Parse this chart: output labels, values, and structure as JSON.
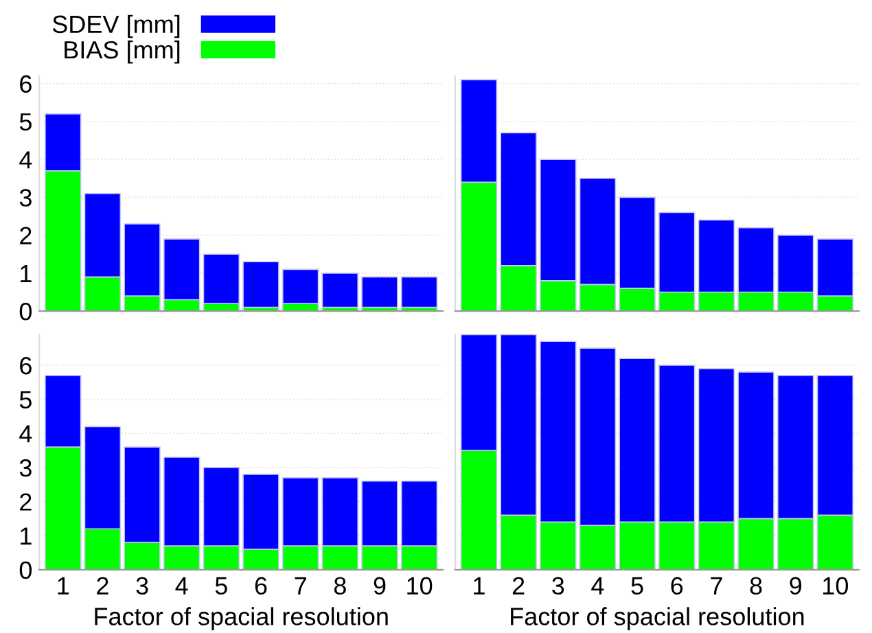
{
  "chart_data": [
    {
      "type": "bar",
      "stacked": true,
      "categories": [
        "1",
        "2",
        "3",
        "4",
        "5",
        "6",
        "7",
        "8",
        "9",
        "10"
      ],
      "ylim": [
        0,
        6.2
      ],
      "yticks": [
        0,
        1,
        2,
        3,
        4,
        5,
        6
      ],
      "grid": "y",
      "legend": "top left",
      "tick_labels": "y",
      "series": [
        {
          "name": "BIAS [mm]",
          "color": "#00ff00",
          "values": [
            3.7,
            0.9,
            0.4,
            0.3,
            0.2,
            0.1,
            0.2,
            0.1,
            0.1,
            0.1
          ]
        },
        {
          "name": "SDEV [mm]",
          "color": "#0000ff",
          "values": [
            1.5,
            2.2,
            1.9,
            1.6,
            1.3,
            1.2,
            0.9,
            0.9,
            0.8,
            0.8
          ]
        }
      ]
    },
    {
      "type": "bar",
      "stacked": true,
      "categories": [
        "1",
        "2",
        "3",
        "4",
        "5",
        "6",
        "7",
        "8",
        "9",
        "10"
      ],
      "ylim": [
        0,
        6.2
      ],
      "yticks": [
        0,
        1,
        2,
        3,
        4,
        5,
        6
      ],
      "grid": "y",
      "tick_labels": false,
      "series": [
        {
          "color": "#00ff00",
          "values": [
            3.4,
            1.2,
            0.8,
            0.7,
            0.6,
            0.5,
            0.5,
            0.5,
            0.5,
            0.4
          ]
        },
        {
          "color": "#0000ff",
          "values": [
            2.7,
            3.5,
            3.2,
            2.8,
            2.4,
            2.1,
            1.9,
            1.7,
            1.5,
            1.5
          ]
        }
      ]
    },
    {
      "type": "bar",
      "stacked": true,
      "categories": [
        "1",
        "2",
        "3",
        "4",
        "5",
        "6",
        "7",
        "8",
        "9",
        "10"
      ],
      "ylim": [
        0,
        6.9
      ],
      "yticks": [
        0,
        1,
        2,
        3,
        4,
        5,
        6
      ],
      "grid": "y",
      "xlabel": "Factor of spacial resolution",
      "series": [
        {
          "color": "#00ff00",
          "values": [
            3.6,
            1.2,
            0.8,
            0.7,
            0.7,
            0.6,
            0.7,
            0.7,
            0.7,
            0.7
          ]
        },
        {
          "color": "#0000ff",
          "values": [
            2.1,
            3.0,
            2.8,
            2.6,
            2.3,
            2.2,
            2.0,
            2.0,
            1.9,
            1.9
          ]
        }
      ]
    },
    {
      "type": "bar",
      "stacked": true,
      "categories": [
        "1",
        "2",
        "3",
        "4",
        "5",
        "6",
        "7",
        "8",
        "9",
        "10"
      ],
      "ylim": [
        0,
        6.9
      ],
      "yticks": [
        0,
        1,
        2,
        3,
        4,
        5,
        6
      ],
      "grid": "y",
      "tick_labels": "x",
      "xlabel": "Factor of spacial resolution",
      "series": [
        {
          "color": "#00ff00",
          "values": [
            3.5,
            1.6,
            1.4,
            1.3,
            1.4,
            1.4,
            1.4,
            1.5,
            1.5,
            1.6
          ]
        },
        {
          "color": "#0000ff",
          "values": [
            3.4,
            5.3,
            5.3,
            5.2,
            4.8,
            4.6,
            4.5,
            4.3,
            4.2,
            4.1
          ]
        }
      ]
    }
  ]
}
